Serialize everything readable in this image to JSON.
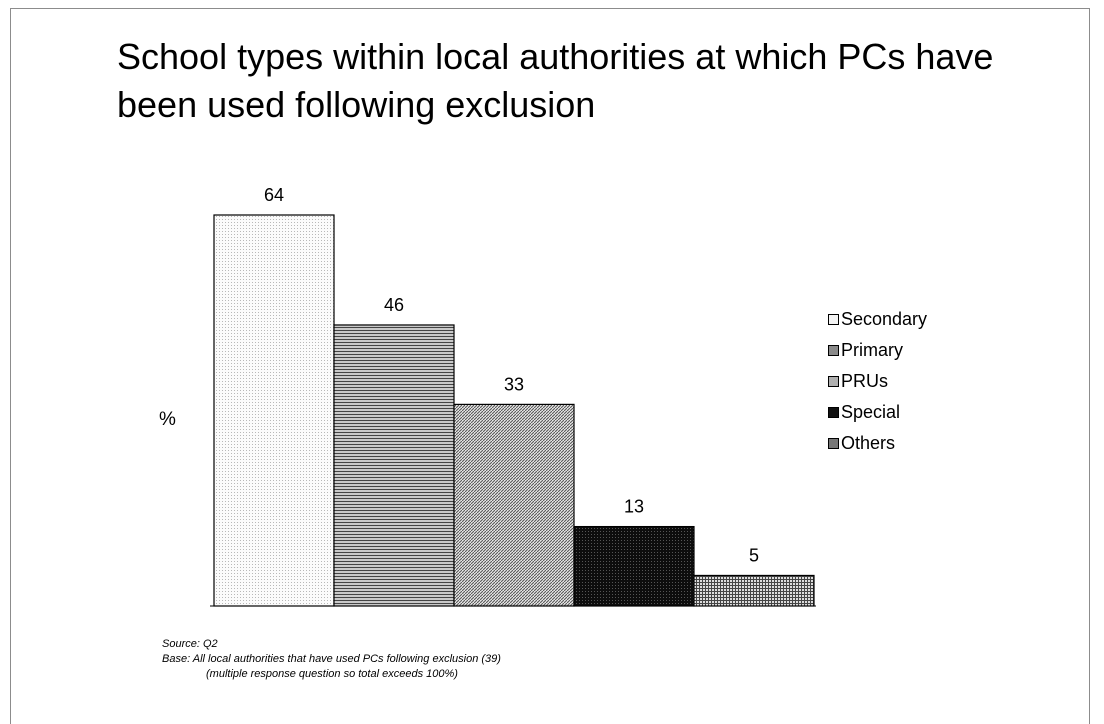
{
  "title": "School types within local authorities at which PCs have been used following exclusion",
  "chart_data": {
    "type": "bar",
    "categories": [
      "Secondary",
      "Primary",
      "PRUs",
      "Special",
      "Others"
    ],
    "values": [
      64,
      46,
      33,
      13,
      5
    ],
    "ylabel": "%",
    "xlabel": "",
    "ylim": [
      0,
      64
    ],
    "grid": false,
    "legend_position": "right",
    "colors": [
      "#f4f4f4",
      "#8a8a8a",
      "#b0b0b0",
      "#111111",
      "#777777"
    ],
    "patterns": [
      "dots",
      "horizontal",
      "diagonal",
      "dense",
      "grid"
    ]
  },
  "source": {
    "line1": "Source:  Q2",
    "line2": "Base: All local authorities that have used PCs following exclusion (39)",
    "line3": "(multiple response question so total exceeds 100%)"
  }
}
